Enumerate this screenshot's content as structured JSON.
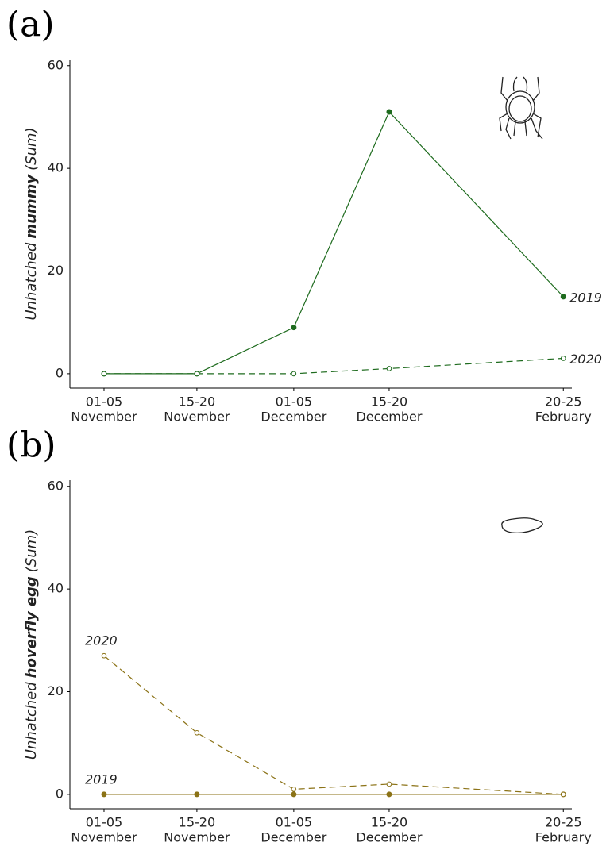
{
  "chart_data": [
    {
      "type": "line",
      "panel": "(a)",
      "ylabel": [
        "Unhatched",
        "mummy",
        "(Sum)"
      ],
      "categories": [
        [
          "01-05",
          "November"
        ],
        [
          "15-20",
          "November"
        ],
        [
          "01-05",
          "December"
        ],
        [
          "15-20",
          "December"
        ],
        [
          "20-25",
          "February"
        ]
      ],
      "series": [
        {
          "name": "2019",
          "color": "#1e6b1e",
          "marker": "filled",
          "dashed": false,
          "values": [
            0,
            0,
            9,
            51,
            15
          ]
        },
        {
          "name": "2020",
          "color": "#1e6b1e",
          "marker": "open",
          "dashed": true,
          "values": [
            0,
            0,
            0,
            1,
            3
          ]
        }
      ],
      "label_position": "end",
      "ylim": [
        -2.8,
        61.2
      ],
      "yticks": [
        0,
        20,
        40,
        60
      ]
    },
    {
      "type": "line",
      "panel": "(b)",
      "ylabel": [
        "Unhatched",
        "hoverfly egg",
        "(Sum)"
      ],
      "categories": [
        [
          "01-05",
          "November"
        ],
        [
          "15-20",
          "November"
        ],
        [
          "01-05",
          "December"
        ],
        [
          "15-20",
          "December"
        ],
        [
          "20-25",
          "February"
        ]
      ],
      "series": [
        {
          "name": "2019",
          "color": "#8b7216",
          "marker": "filled",
          "dashed": false,
          "values": [
            0,
            0,
            0,
            0,
            0
          ]
        },
        {
          "name": "2020",
          "color": "#8b7216",
          "marker": "open",
          "dashed": true,
          "values": [
            27,
            12,
            1,
            2,
            0
          ]
        }
      ],
      "label_position": "start",
      "ylim": [
        -2.8,
        61.2
      ],
      "yticks": [
        0,
        20,
        40,
        60
      ]
    }
  ]
}
